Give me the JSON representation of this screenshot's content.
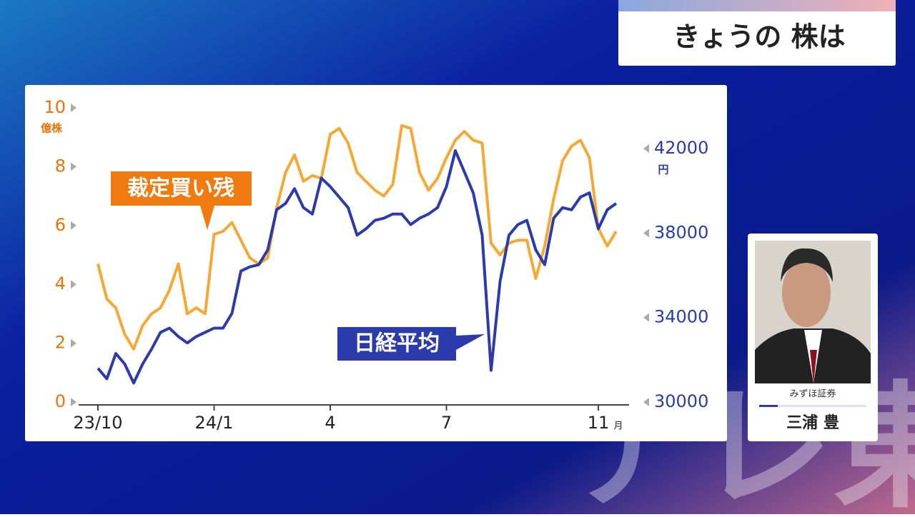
{
  "header": {
    "title": "きょうの 株は"
  },
  "speaker": {
    "company": "みずほ証券",
    "name": "三浦 豊"
  },
  "chart_data": {
    "type": "line",
    "categories": [
      "23/10",
      null,
      null,
      null,
      null,
      null,
      null,
      null,
      null,
      null,
      null,
      null,
      null,
      "24/1",
      null,
      null,
      null,
      null,
      null,
      null,
      null,
      null,
      null,
      null,
      null,
      null,
      "4",
      null,
      null,
      null,
      null,
      null,
      null,
      null,
      null,
      null,
      null,
      null,
      null,
      "7",
      null,
      null,
      null,
      null,
      null,
      null,
      null,
      null,
      null,
      null,
      null,
      null,
      null,
      null,
      null,
      null,
      "11",
      null,
      null
    ],
    "xunit": "月",
    "yunit": "億株",
    "y2unit": "円",
    "ylim": [
      0,
      10
    ],
    "yticks": [
      0,
      2,
      4,
      6,
      8,
      10
    ],
    "y2lim": [
      30000,
      42000
    ],
    "y2ticks": [
      30000,
      34000,
      38000,
      42000
    ],
    "annotations": [
      "裁定買い残",
      "日経平均"
    ],
    "series": [
      {
        "name": "裁定買い残",
        "color": "#f5a833",
        "values": [
          4.7,
          3.5,
          3.2,
          2.3,
          1.8,
          2.6,
          3.0,
          3.2,
          3.8,
          4.7,
          3.0,
          3.2,
          3.0,
          5.7,
          5.8,
          6.1,
          5.5,
          4.9,
          4.7,
          4.9,
          6.6,
          7.8,
          8.4,
          7.5,
          7.7,
          7.6,
          9.1,
          9.3,
          8.8,
          7.8,
          7.5,
          7.2,
          7.0,
          7.4,
          9.4,
          9.3,
          7.8,
          7.2,
          7.6,
          8.3,
          8.9,
          9.2,
          8.9,
          8.8,
          5.4,
          5.0,
          5.4,
          5.5,
          5.5,
          4.2,
          5.3,
          6.9,
          8.2,
          8.7,
          8.9,
          8.3,
          5.9,
          5.3,
          5.8
        ]
      },
      {
        "name": "日経平均",
        "color": "#2b3bab",
        "axis": "y2",
        "values": [
          31600,
          31100,
          32300,
          31800,
          30900,
          31800,
          32500,
          33300,
          33500,
          33100,
          32800,
          33100,
          33300,
          33500,
          33500,
          34200,
          36200,
          36400,
          36500,
          37200,
          39100,
          39400,
          40100,
          39200,
          38900,
          40600,
          40200,
          39700,
          39200,
          37900,
          38200,
          38600,
          38700,
          38900,
          38900,
          38400,
          38700,
          38900,
          39200,
          40200,
          41900,
          40900,
          39900,
          37900,
          31500,
          35700,
          37900,
          38400,
          38600,
          37200,
          36500,
          38700,
          39200,
          39100,
          39700,
          39900,
          38200,
          39100,
          39400
        ]
      }
    ]
  }
}
